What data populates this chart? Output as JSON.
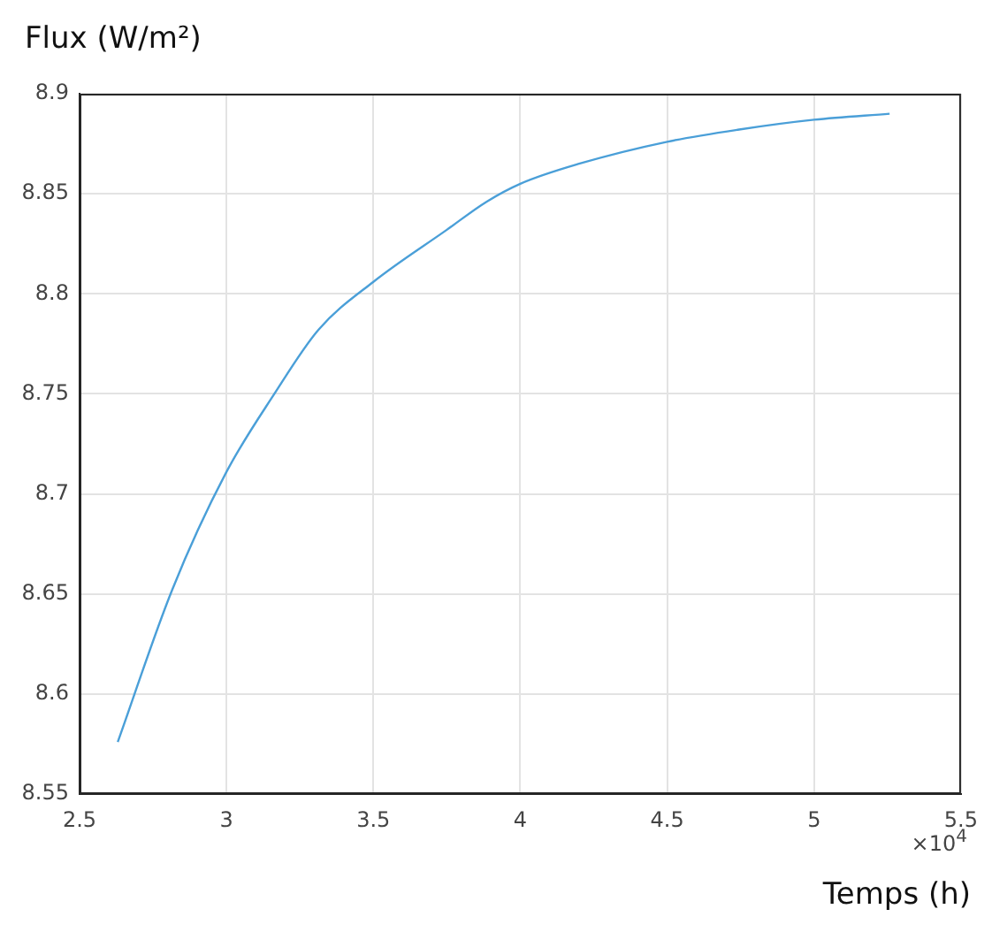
{
  "chart_data": {
    "type": "line",
    "ylabel": "Flux (W/m²)",
    "xlabel": "Temps (h)",
    "annotations": [
      "×10$^{4}$"
    ],
    "x": [
      2.63,
      2.815,
      3.0,
      3.163,
      3.313,
      3.5,
      3.75,
      3.885,
      4.0,
      4.2,
      4.5,
      4.74,
      5.0,
      5.257
    ],
    "series": [
      {
        "color": "#4a9fd8",
        "values": [
          8.576,
          8.652,
          8.711,
          8.75,
          8.782,
          8.806,
          8.832,
          8.846,
          8.855,
          8.865,
          8.876,
          8.882,
          8.887,
          8.89
        ]
      }
    ],
    "xlim": [
      2.5,
      5.5
    ],
    "xticks": [
      2.5,
      3,
      3.5,
      4,
      4.5,
      5,
      5.5
    ],
    "ylim": [
      8.55,
      8.9
    ],
    "yticks": [
      8.55,
      8.6,
      8.65,
      8.7,
      8.75,
      8.8,
      8.85,
      8.9
    ],
    "grid": true,
    "legend": false,
    "marker": "none",
    "line_style": "solid"
  }
}
